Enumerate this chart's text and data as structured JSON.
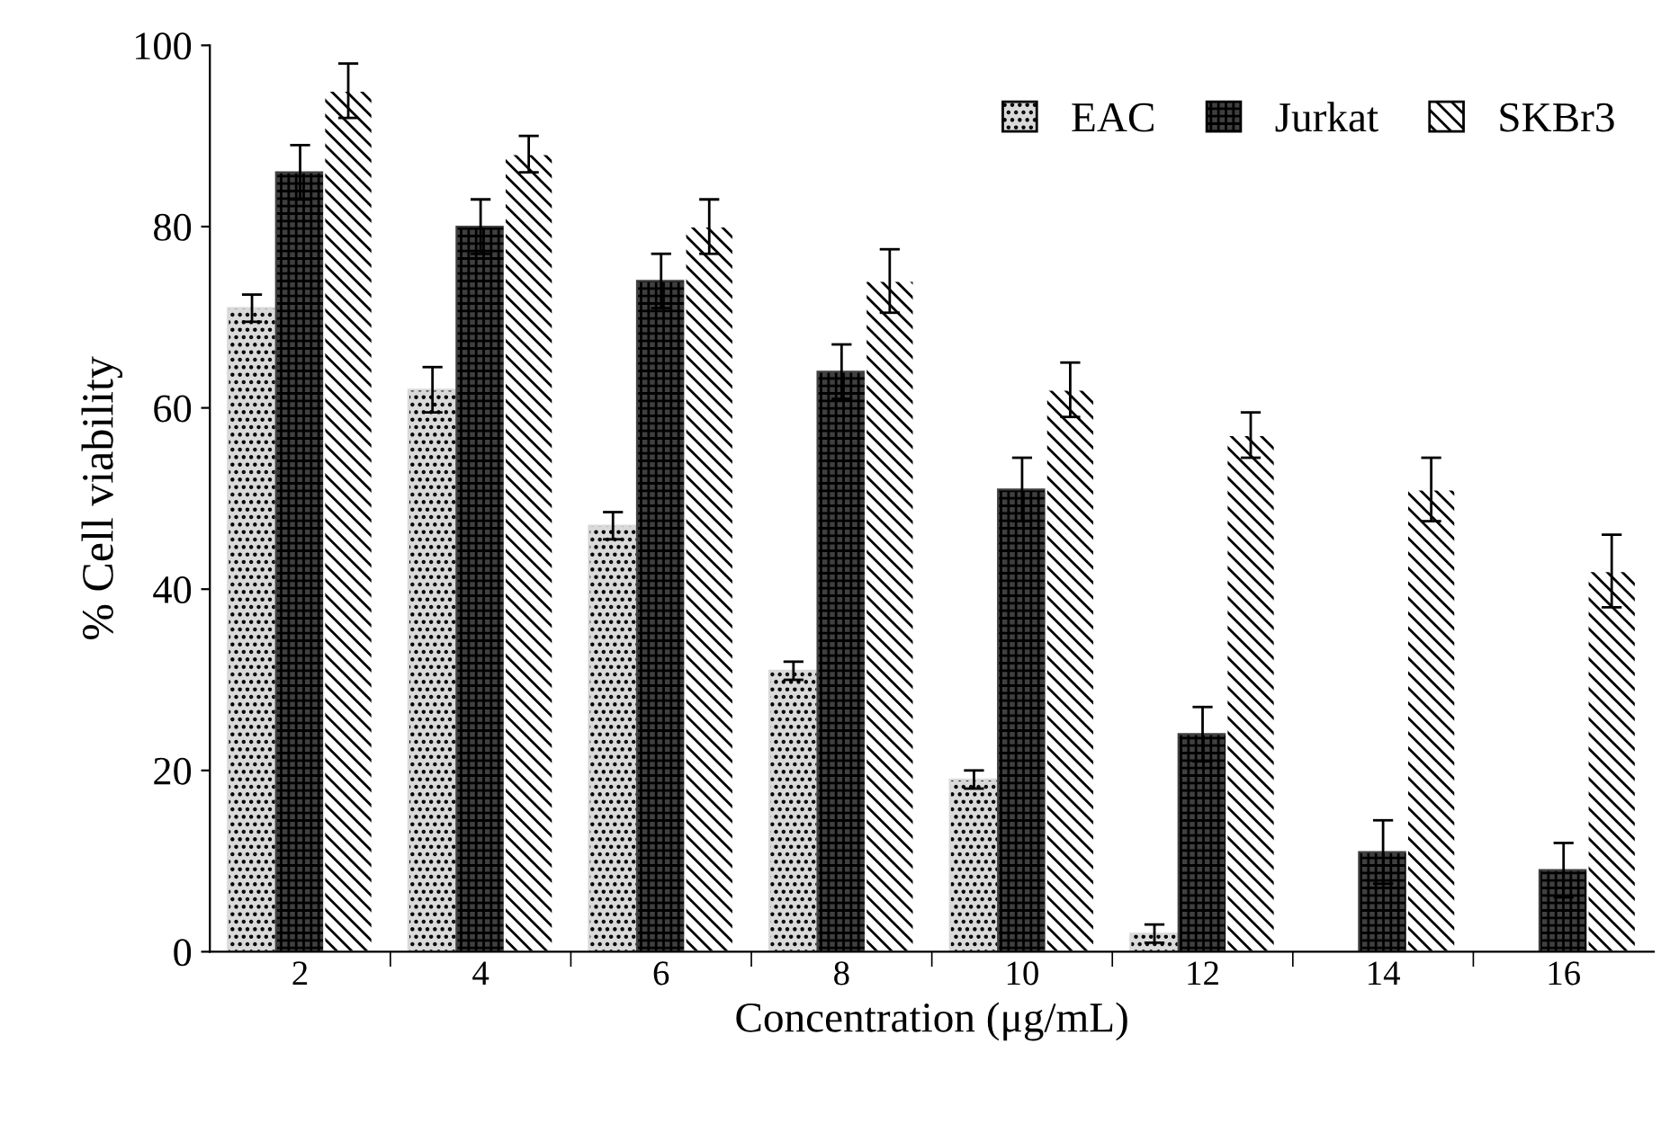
{
  "chart_data": {
    "type": "bar",
    "xlabel": "Concentration (μg/mL)",
    "ylabel": "% Cell viability",
    "categories": [
      "2",
      "4",
      "6",
      "8",
      "10",
      "12",
      "14",
      "16"
    ],
    "series": [
      {
        "name": "EAC",
        "color": "#d9d9d9",
        "values": [
          71,
          62,
          47,
          31,
          19,
          2,
          null,
          null
        ],
        "errors": [
          1.5,
          2.5,
          1.5,
          1,
          1,
          1,
          null,
          null
        ]
      },
      {
        "name": "Jurkat",
        "color": "#404040",
        "values": [
          86,
          80,
          74,
          64,
          51,
          24,
          11,
          9
        ],
        "errors": [
          3,
          3,
          3,
          3,
          3.5,
          3,
          3.5,
          3
        ]
      },
      {
        "name": "SKBr3",
        "color": "#ffffff",
        "values": [
          95,
          88,
          80,
          74,
          62,
          57,
          51,
          42
        ],
        "errors": [
          3,
          2,
          3,
          3.5,
          3,
          2.5,
          3.5,
          4
        ]
      }
    ],
    "ylim": [
      0,
      100
    ],
    "yticks": [
      0,
      20,
      40,
      60,
      80,
      100
    ],
    "grid": false,
    "legend": "top right"
  }
}
